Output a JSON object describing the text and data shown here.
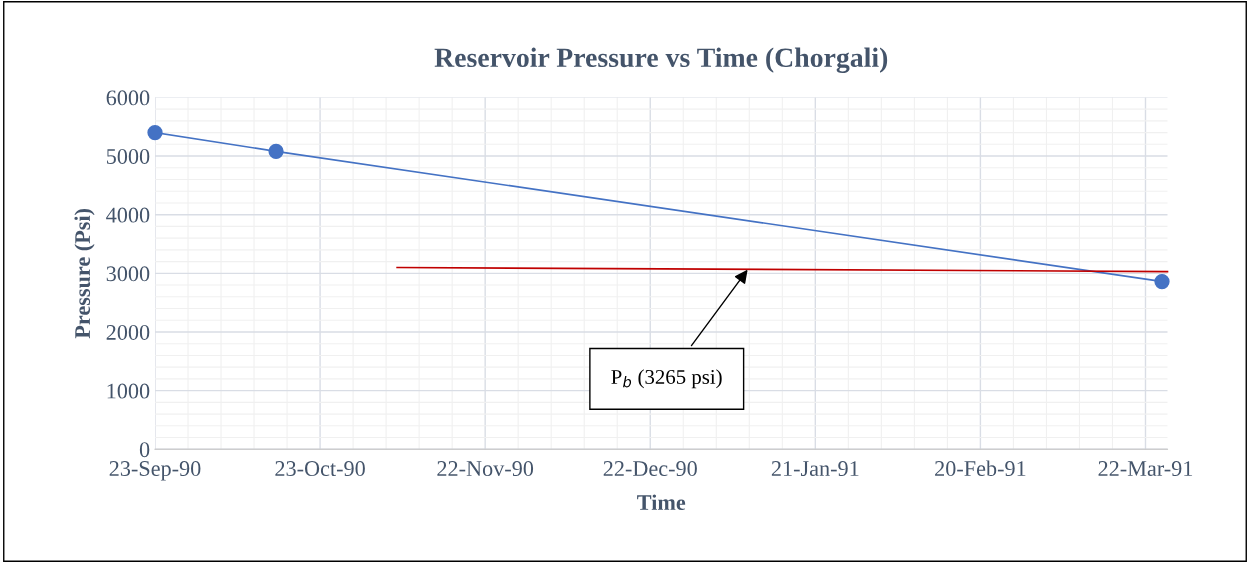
{
  "chart_data": {
    "type": "line",
    "title": "Reservoir Pressure vs Time (Chorgali)",
    "xlabel": "Time",
    "ylabel": "Pressure (Psi)",
    "series": [
      {
        "color": "#4472c4",
        "marker": "circle",
        "x": [
          "1990-09-23",
          "1990-10-15",
          "1991-03-25"
        ],
        "values": [
          5400,
          5080,
          2860
        ]
      },
      {
        "color": "#c00000",
        "marker": "none",
        "x": [
          "1990-11-06",
          "1991-03-26"
        ],
        "values": [
          3100,
          3030
        ]
      }
    ],
    "annotations": [
      {
        "text": "P$_{b}$ (3265 psi)",
        "x": "1991-01-09",
        "y": 3100
      }
    ],
    "xlim": [
      "1990-09-23",
      "1991-03-26"
    ],
    "xticks": [
      {
        "value": "1990-09-23",
        "label": "23-Sep-90"
      },
      {
        "value": "1990-10-23",
        "label": "23-Oct-90"
      },
      {
        "value": "1990-11-22",
        "label": "22-Nov-90"
      },
      {
        "value": "1990-12-22",
        "label": "22-Dec-90"
      },
      {
        "value": "1991-01-21",
        "label": "21-Jan-91"
      },
      {
        "value": "1991-02-20",
        "label": "20-Feb-91"
      },
      {
        "value": "1991-03-22",
        "label": "22-Mar-91"
      }
    ],
    "ylim": [
      0,
      6000
    ],
    "yticks": [
      0,
      1000,
      2000,
      3000,
      4000,
      5000,
      6000
    ],
    "grid": true,
    "legend": false
  }
}
